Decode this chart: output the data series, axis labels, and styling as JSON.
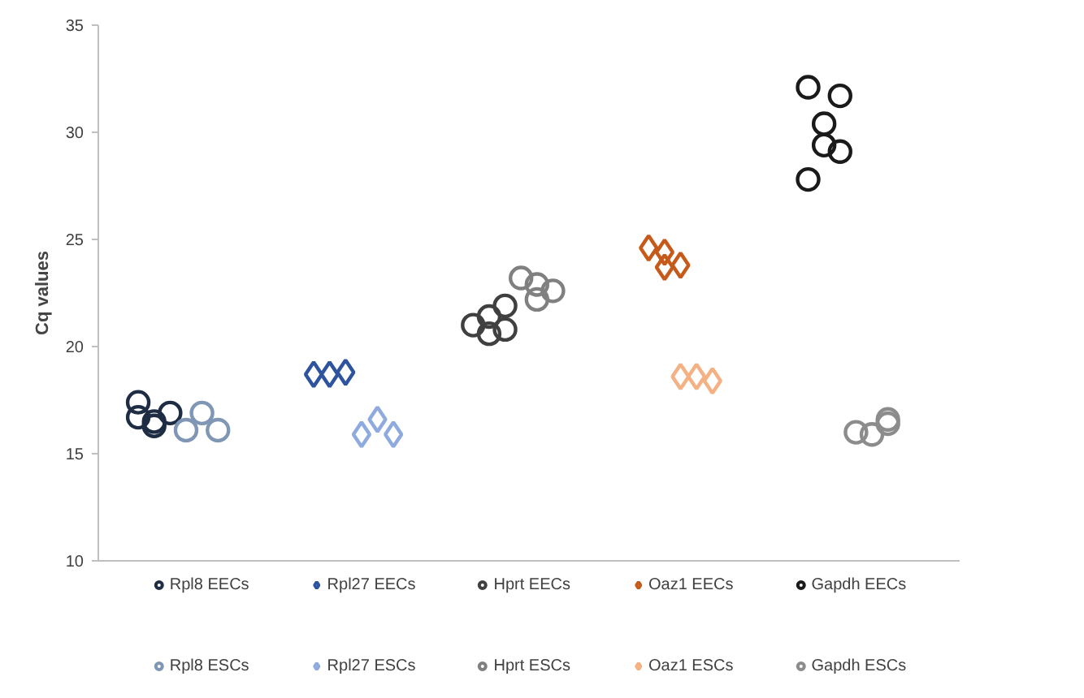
{
  "chart_data": {
    "type": "scatter",
    "ylabel": "Cq values",
    "ylim": [
      10,
      35
    ],
    "yticks": [
      10,
      15,
      20,
      25,
      30,
      35
    ],
    "tick_labels": "y",
    "grid": false,
    "legend": "bottom",
    "categories": [
      null,
      null,
      null,
      null,
      null,
      null,
      null,
      null,
      null,
      null,
      null,
      null,
      null,
      null,
      null,
      null,
      null,
      null,
      null,
      null,
      null,
      null,
      null,
      null,
      null,
      null,
      null,
      null,
      null,
      null,
      null,
      null,
      null,
      null,
      null,
      null,
      null,
      null,
      null,
      null,
      null,
      null,
      null,
      null,
      null,
      null,
      null,
      null,
      null,
      null,
      null,
      null,
      null,
      null
    ],
    "series": [
      {
        "name": "Rpl8 EECs",
        "color": "#1f2d44",
        "marker": "circle",
        "values": [
          null,
          null,
          17.4,
          16.5,
          16.9,
          null,
          null,
          null,
          null,
          null,
          null,
          null,
          null,
          null,
          null,
          null,
          null,
          null,
          null,
          null,
          null,
          null,
          null,
          null,
          null,
          null,
          null,
          null,
          null,
          null,
          null,
          null,
          null,
          null,
          null,
          null,
          null,
          null,
          null,
          null,
          null,
          null,
          null,
          null,
          null,
          null,
          null,
          null,
          null,
          null,
          null,
          null,
          null,
          null
        ]
      },
      {
        "name": "Rpl8 ESCs",
        "color": "#7f97b5",
        "marker": "circle",
        "values": [
          null,
          null,
          null,
          null,
          null,
          16.1,
          16.9,
          16.1,
          null,
          null,
          null,
          null,
          null,
          null,
          null,
          null,
          null,
          null,
          null,
          null,
          null,
          null,
          null,
          null,
          null,
          null,
          null,
          null,
          null,
          null,
          null,
          null,
          null,
          null,
          null,
          null,
          null,
          null,
          null,
          null,
          null,
          null,
          null,
          null,
          null,
          null,
          null,
          null,
          null,
          null,
          null,
          null,
          null,
          null
        ]
      },
      {
        "name": "Rpl27 EECs",
        "color": "#2e54a0",
        "marker": "diamond",
        "values": [
          null,
          null,
          null,
          null,
          null,
          null,
          null,
          null,
          null,
          null,
          null,
          null,
          null,
          18.7,
          18.7,
          18.8,
          null,
          null,
          null,
          null,
          null,
          null,
          null,
          null,
          null,
          null,
          null,
          null,
          null,
          null,
          null,
          null,
          null,
          null,
          null,
          null,
          null,
          null,
          null,
          null,
          null,
          null,
          null,
          null,
          null,
          null,
          null,
          null,
          null,
          null,
          null,
          null,
          null,
          null
        ]
      },
      {
        "name": "Rpl27 ESCs",
        "color": "#8eaadf",
        "marker": "diamond",
        "values": [
          null,
          null,
          null,
          null,
          null,
          null,
          null,
          null,
          null,
          null,
          null,
          null,
          null,
          null,
          null,
          null,
          15.9,
          16.6,
          15.9,
          null,
          null,
          null,
          null,
          null,
          null,
          null,
          null,
          null,
          null,
          null,
          null,
          null,
          null,
          null,
          null,
          null,
          null,
          null,
          null,
          null,
          null,
          null,
          null,
          null,
          null,
          null,
          null,
          null,
          null,
          null,
          null,
          null,
          null,
          null
        ]
      },
      {
        "name": "Hprt EECs",
        "color": "#404040",
        "marker": "circle",
        "values": [
          null,
          null,
          null,
          null,
          null,
          null,
          null,
          null,
          null,
          null,
          null,
          null,
          null,
          null,
          null,
          null,
          null,
          null,
          null,
          null,
          null,
          null,
          null,
          21.0,
          21.4,
          21.9,
          null,
          null,
          null,
          null,
          null,
          null,
          null,
          null,
          null,
          null,
          null,
          null,
          null,
          null,
          null,
          null,
          null,
          null,
          null,
          null,
          null,
          null,
          null,
          null,
          null,
          null,
          null,
          null
        ]
      },
      {
        "name": "Hprt ESCs",
        "color": "#808080",
        "marker": "circle",
        "values": [
          null,
          null,
          null,
          null,
          null,
          null,
          null,
          null,
          null,
          null,
          null,
          null,
          null,
          null,
          null,
          null,
          null,
          null,
          null,
          null,
          null,
          null,
          null,
          null,
          null,
          null,
          23.2,
          22.9,
          22.6,
          null,
          null,
          null,
          null,
          null,
          null,
          null,
          null,
          null,
          null,
          null,
          null,
          null,
          null,
          null,
          null,
          null,
          null,
          null,
          null,
          null,
          null,
          null,
          null,
          null
        ]
      },
      {
        "name": "Oaz1 EECs",
        "color": "#c55a1a",
        "marker": "diamond",
        "values": [
          null,
          null,
          null,
          null,
          null,
          null,
          null,
          null,
          null,
          null,
          null,
          null,
          null,
          null,
          null,
          null,
          null,
          null,
          null,
          null,
          null,
          null,
          null,
          null,
          null,
          null,
          null,
          null,
          null,
          null,
          null,
          null,
          null,
          null,
          24.6,
          24.4,
          23.8,
          null,
          null,
          null,
          null,
          null,
          null,
          null,
          null,
          null,
          null,
          null,
          null,
          null,
          null,
          null,
          null,
          null
        ]
      },
      {
        "name": "Oaz1 ESCs",
        "color": "#f4b183",
        "marker": "diamond",
        "values": [
          null,
          null,
          null,
          null,
          null,
          null,
          null,
          null,
          null,
          null,
          null,
          null,
          null,
          null,
          null,
          null,
          null,
          null,
          null,
          null,
          null,
          null,
          null,
          null,
          null,
          null,
          null,
          null,
          null,
          null,
          null,
          null,
          null,
          null,
          null,
          null,
          18.6,
          18.6,
          18.4,
          null,
          null,
          null,
          null,
          null,
          null,
          null,
          null,
          null,
          null,
          null,
          null,
          null,
          null,
          null
        ]
      },
      {
        "name": "Gapdh EECs",
        "color": "#1a1a1a",
        "marker": "circle",
        "values": [
          null,
          null,
          null,
          null,
          null,
          null,
          null,
          null,
          null,
          null,
          null,
          null,
          null,
          null,
          null,
          null,
          null,
          null,
          null,
          null,
          null,
          null,
          null,
          null,
          null,
          null,
          null,
          null,
          null,
          null,
          null,
          null,
          null,
          null,
          null,
          null,
          null,
          null,
          null,
          null,
          null,
          null,
          null,
          null,
          32.1,
          30.4,
          31.7,
          null,
          null,
          null,
          null,
          null,
          null,
          null
        ]
      },
      {
        "name": "Gapdh ESCs",
        "color": "#8c8c8c",
        "marker": "circle",
        "values": [
          null,
          null,
          null,
          null,
          null,
          null,
          null,
          null,
          null,
          null,
          null,
          null,
          null,
          null,
          null,
          null,
          null,
          null,
          null,
          null,
          null,
          null,
          null,
          null,
          null,
          null,
          null,
          null,
          null,
          null,
          null,
          null,
          null,
          null,
          null,
          null,
          null,
          null,
          null,
          null,
          null,
          null,
          null,
          null,
          null,
          null,
          null,
          16.0,
          15.9,
          16.6,
          null,
          null,
          null,
          null
        ]
      },
      {
        "color": "#1f2d44",
        "marker": "circle",
        "values": [
          null,
          null,
          16.7,
          16.3,
          null,
          null,
          null,
          null,
          null,
          null,
          null,
          null,
          null,
          null,
          null,
          null,
          null,
          null,
          null,
          null,
          null,
          null,
          null,
          null,
          null,
          null,
          null,
          null,
          null,
          null,
          null,
          null,
          null,
          null,
          null,
          null,
          null,
          null,
          null,
          null,
          null,
          null,
          null,
          null,
          null,
          null,
          null,
          null,
          null,
          null,
          null,
          null,
          null,
          null
        ]
      },
      {
        "color": "#404040",
        "marker": "circle",
        "values": [
          null,
          null,
          null,
          null,
          null,
          null,
          null,
          null,
          null,
          null,
          null,
          null,
          null,
          null,
          null,
          null,
          null,
          null,
          null,
          null,
          null,
          null,
          null,
          null,
          20.6,
          20.8,
          null,
          null,
          null,
          null,
          null,
          null,
          null,
          null,
          null,
          null,
          null,
          null,
          null,
          null,
          null,
          null,
          null,
          null,
          null,
          null,
          null,
          null,
          null,
          null,
          null,
          null,
          null,
          null
        ]
      },
      {
        "color": "#808080",
        "marker": "circle",
        "values": [
          null,
          null,
          null,
          null,
          null,
          null,
          null,
          null,
          null,
          null,
          null,
          null,
          null,
          null,
          null,
          null,
          null,
          null,
          null,
          null,
          null,
          null,
          null,
          null,
          null,
          null,
          null,
          22.2,
          null,
          null,
          null,
          null,
          null,
          null,
          null,
          null,
          null,
          null,
          null,
          null,
          null,
          null,
          null,
          null,
          null,
          null,
          null,
          null,
          null,
          null,
          null,
          null,
          null,
          null
        ]
      },
      {
        "color": "#c55a1a",
        "marker": "diamond",
        "values": [
          null,
          null,
          null,
          null,
          null,
          null,
          null,
          null,
          null,
          null,
          null,
          null,
          null,
          null,
          null,
          null,
          null,
          null,
          null,
          null,
          null,
          null,
          null,
          null,
          null,
          null,
          null,
          null,
          null,
          null,
          null,
          null,
          null,
          null,
          null,
          23.7,
          null,
          null,
          null,
          null,
          null,
          null,
          null,
          null,
          null,
          null,
          null,
          null,
          null,
          null,
          null,
          null,
          null,
          null
        ]
      },
      {
        "color": "#1a1a1a",
        "marker": "circle",
        "values": [
          null,
          null,
          null,
          null,
          null,
          null,
          null,
          null,
          null,
          null,
          null,
          null,
          null,
          null,
          null,
          null,
          null,
          null,
          null,
          null,
          null,
          null,
          null,
          null,
          null,
          null,
          null,
          null,
          null,
          null,
          null,
          null,
          null,
          null,
          null,
          null,
          null,
          null,
          null,
          null,
          null,
          null,
          null,
          null,
          27.8,
          29.4,
          29.1,
          null,
          null,
          null,
          null,
          null,
          null,
          null
        ]
      },
      {
        "color": "#8c8c8c",
        "marker": "circle",
        "values": [
          null,
          null,
          null,
          null,
          null,
          null,
          null,
          null,
          null,
          null,
          null,
          null,
          null,
          null,
          null,
          null,
          null,
          null,
          null,
          null,
          null,
          null,
          null,
          null,
          null,
          null,
          null,
          null,
          null,
          null,
          null,
          null,
          null,
          null,
          null,
          null,
          null,
          null,
          null,
          null,
          null,
          null,
          null,
          null,
          null,
          null,
          null,
          null,
          null,
          16.4,
          null,
          null,
          null,
          null
        ]
      }
    ]
  }
}
